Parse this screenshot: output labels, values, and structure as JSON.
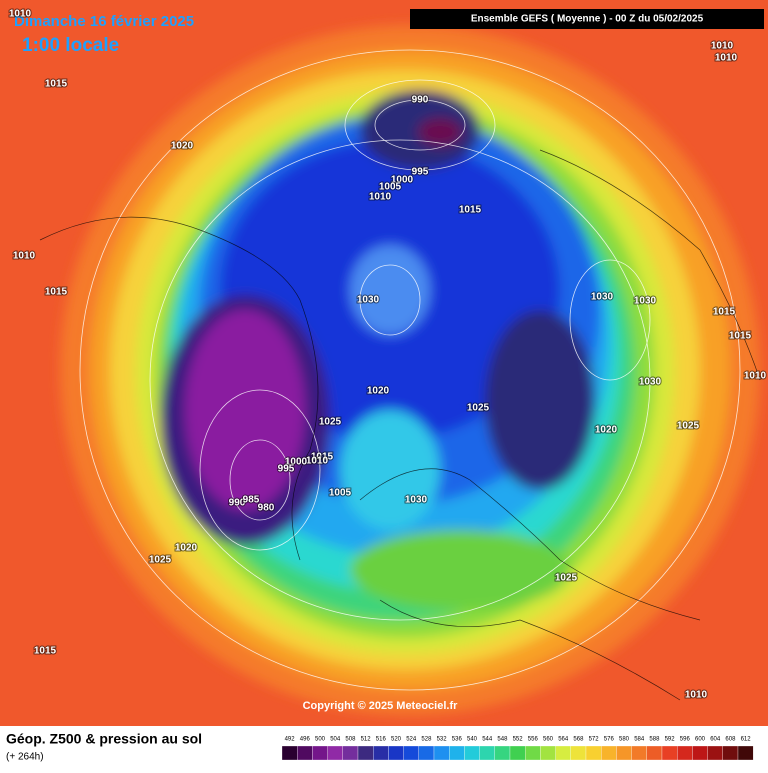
{
  "header": {
    "date": "Dimanche 16 février 2025",
    "time": "1:00 locale",
    "run": "Ensemble GEFS ( Moyenne )  -  00 Z du 05/02/2025"
  },
  "isobars": [
    1010,
    1015,
    1020,
    1010,
    1015,
    990,
    995,
    1000,
    1005,
    1010,
    1015,
    1010,
    1010,
    1030,
    1030,
    1030,
    1015,
    1015,
    1030,
    1010,
    1025,
    1020,
    1020,
    1025,
    1025,
    1015,
    1010,
    1000,
    995,
    990,
    985,
    980,
    1005,
    1030,
    1020,
    1025,
    1025,
    1015,
    1010
  ],
  "copyright": "Copyright © 2025 Meteociel.fr",
  "footer": {
    "title": "Géop. Z500 & pression au sol",
    "subtitle": "(+ 264h)"
  },
  "legend": [
    492,
    496,
    500,
    504,
    508,
    512,
    516,
    520,
    524,
    528,
    532,
    536,
    540,
    544,
    548,
    552,
    556,
    560,
    564,
    568,
    572,
    576,
    580,
    584,
    588,
    592,
    596,
    600,
    604,
    608,
    612
  ]
}
